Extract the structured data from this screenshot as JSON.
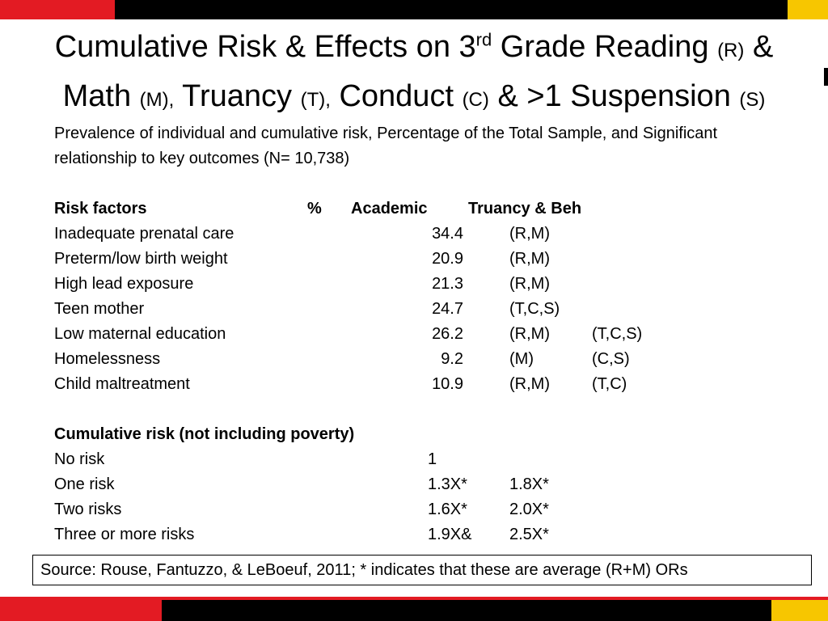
{
  "title": {
    "line1_a": "Cumulative Risk & Effects on 3",
    "line1_sup": "rd",
    "line1_b": " Grade Reading ",
    "line1_r": "(R)",
    "line1_amp": " &",
    "line2_math": "Math ",
    "line2_m": "(M),",
    "line2_truancy": " Truancy ",
    "line2_t": "(T),",
    "line2_conduct": " Conduct ",
    "line2_c": "(C)",
    "line2_susp": " & >1 Suspension ",
    "line2_s": "(S)"
  },
  "intro": "Prevalence of individual and cumulative risk, Percentage of the Total Sample, and Significant relationship to key outcomes (N= 10,738)",
  "table": {
    "headers": {
      "risk": "Risk factors",
      "pct": "%",
      "academic": "Academic",
      "truancy": "Truancy & Beh"
    },
    "rows": [
      {
        "factor": "Inadequate prenatal care",
        "pct": "34.4",
        "academic": "(R,M)",
        "truancy": ""
      },
      {
        "factor": "Preterm/low birth weight",
        "pct": "20.9",
        "academic": "(R,M)",
        "truancy": ""
      },
      {
        "factor": "High lead exposure",
        "pct": "21.3",
        "academic": "(R,M)",
        "truancy": ""
      },
      {
        "factor": "Teen mother",
        "pct": "24.7",
        "academic": "(T,C,S)",
        "truancy": ""
      },
      {
        "factor": "Low maternal education",
        "pct": "26.2",
        "academic": "(R,M)",
        "truancy": "(T,C,S)"
      },
      {
        "factor": "Homelessness",
        "pct": "9.2",
        "academic": "(M)",
        "truancy": "(C,S)"
      },
      {
        "factor": "Child maltreatment",
        "pct": "10.9",
        "academic": "(R,M)",
        "truancy": "(T,C)"
      }
    ]
  },
  "cumulative": {
    "header": "Cumulative risk (not including poverty)",
    "rows": [
      {
        "label": "No risk",
        "v1": "1",
        "v2": ""
      },
      {
        "label": "One risk",
        "v1": "1.3X*",
        "v2": "1.8X*"
      },
      {
        "label": "Two risks",
        "v1": "1.6X*",
        "v2": "2.0X*"
      },
      {
        "label": "Three or more risks",
        "v1": "1.9X&",
        "v2": "2.5X*"
      }
    ]
  },
  "source": "Source: Rouse, Fantuzzo, & LeBoeuf, 2011; * indicates that these are average (R+M) ORs",
  "colors": {
    "accent_red": "#e31b23",
    "accent_yellow": "#f7c600",
    "bar_black": "#000000"
  }
}
